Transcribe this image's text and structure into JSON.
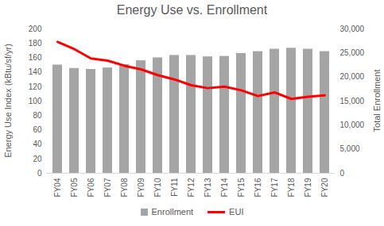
{
  "chart_data": {
    "type": "bar",
    "title": "Energy Use vs. Enrollment",
    "categories": [
      "FY04",
      "FY05",
      "FY06",
      "FY07",
      "FY08",
      "FY09",
      "FY10",
      "FY11",
      "FY12",
      "FY13",
      "FY14",
      "FY15",
      "FY16",
      "FY17",
      "FY18",
      "FY19",
      "FY20"
    ],
    "series": [
      {
        "name": "Enrollment",
        "type": "bar",
        "axis": "y2",
        "color": "#a5a5a5",
        "values": [
          22500,
          21800,
          21600,
          21900,
          22600,
          23400,
          24000,
          24500,
          24500,
          24200,
          24300,
          24900,
          25300,
          25800,
          26000,
          25800,
          25300
        ]
      },
      {
        "name": "EUI",
        "type": "line",
        "color": "#ff0000",
        "values": [
          182,
          172,
          159,
          156,
          149,
          144,
          136,
          130,
          122,
          118,
          120,
          115,
          107,
          112,
          103,
          106,
          108
        ]
      }
    ],
    "y_label": "Energy Use Index (kBtu/sf/yr)",
    "y2_label": "Total Enrollment",
    "ylim": [
      0,
      200
    ],
    "yticks": [
      0,
      20,
      40,
      60,
      80,
      100,
      120,
      140,
      160,
      180,
      200
    ],
    "y2lim": [
      0,
      30000
    ],
    "y2ticks": [
      0,
      {
        "value": 5000,
        "label": "5,000"
      },
      {
        "value": 10000,
        "label": "10,000"
      },
      {
        "value": 15000,
        "label": "15,000"
      },
      {
        "value": 20000,
        "label": "20,000"
      },
      {
        "value": 25000,
        "label": "25,000"
      },
      {
        "value": 30000,
        "label": "30,000"
      }
    ],
    "grid": false,
    "legend": "bottom"
  }
}
